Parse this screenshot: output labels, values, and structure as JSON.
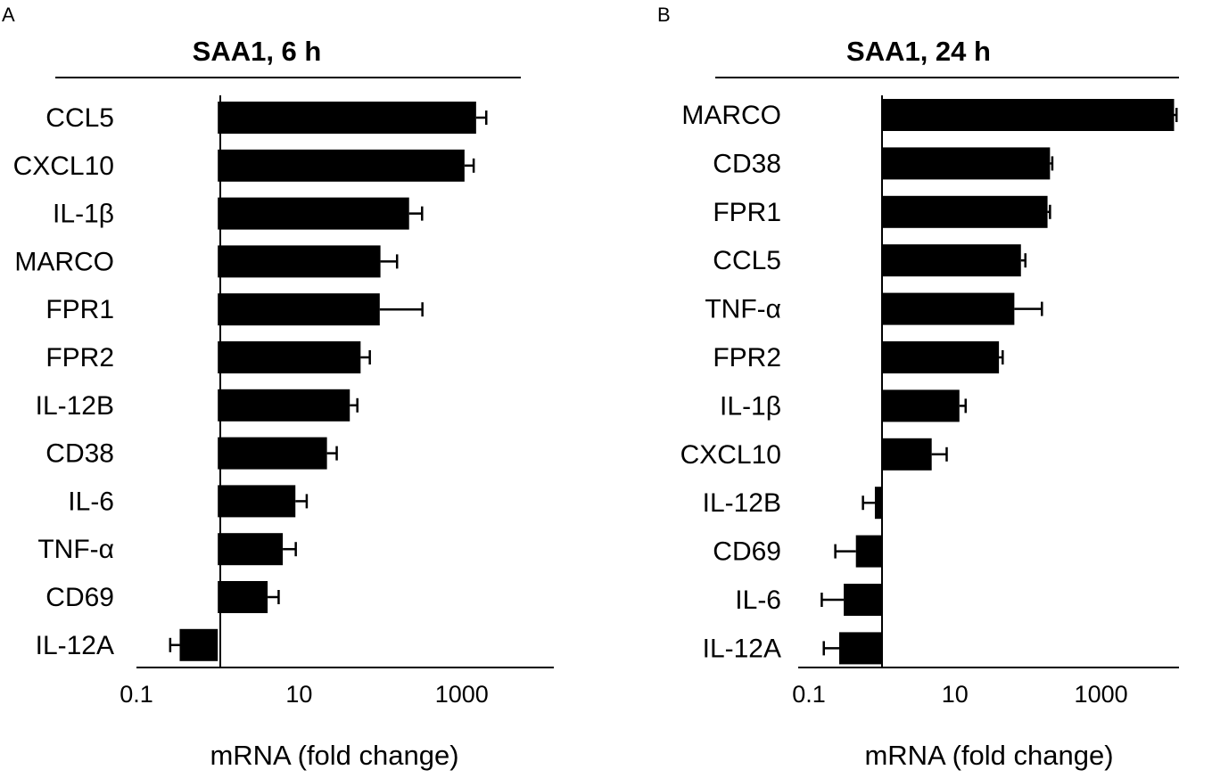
{
  "chart_data": [
    {
      "type": "bar",
      "orientation": "horizontal",
      "panel_letter": "A",
      "title": "SAA1, 6 h",
      "xlabel": "mRNA (fold change)",
      "xscale": "log",
      "xlim": [
        0.1,
        10000
      ],
      "baseline": 1,
      "xticks": [
        {
          "value": 0.1,
          "label": "0.1"
        },
        {
          "value": 10,
          "label": "10"
        },
        {
          "value": 1000,
          "label": "1000"
        }
      ],
      "categories": [
        "CCL5",
        "CXCL10",
        "IL-1β",
        "MARCO",
        "FPR1",
        "FPR2",
        "IL-12B",
        "CD38",
        "IL-6",
        "TNF-α",
        "CD69",
        "IL-12A"
      ],
      "values": [
        1500,
        1080,
        225,
        100,
        98,
        57,
        42,
        22,
        9,
        6.3,
        4.1,
        0.34
      ],
      "error": [
        500,
        320,
        100,
        60,
        230,
        17,
        10,
        7,
        3.4,
        2.8,
        1.5,
        0.08
      ]
    },
    {
      "type": "bar",
      "orientation": "horizontal",
      "panel_letter": "B",
      "title": "SAA1, 24 h",
      "xlabel": "mRNA (fold change)",
      "xscale": "log",
      "xlim": [
        0.1,
        10000
      ],
      "baseline": 1,
      "xticks": [
        {
          "value": 0.1,
          "label": "0.1"
        },
        {
          "value": 10,
          "label": "10"
        },
        {
          "value": 1000,
          "label": "1000"
        }
      ],
      "categories": [
        "MARCO",
        "CD38",
        "FPR1",
        "CCL5",
        "TNF-α",
        "FPR2",
        "IL-1β",
        "CXCL10",
        "IL-12B",
        "CD69",
        "IL-6",
        "IL-12A"
      ],
      "values": [
        10000,
        200,
        185,
        80,
        65,
        40,
        11.5,
        4.8,
        0.8,
        0.44,
        0.3,
        0.26
      ],
      "error": [
        800,
        15,
        15,
        12,
        90,
        5,
        2.5,
        2.9,
        0.25,
        0.21,
        0.15,
        0.1
      ]
    }
  ]
}
